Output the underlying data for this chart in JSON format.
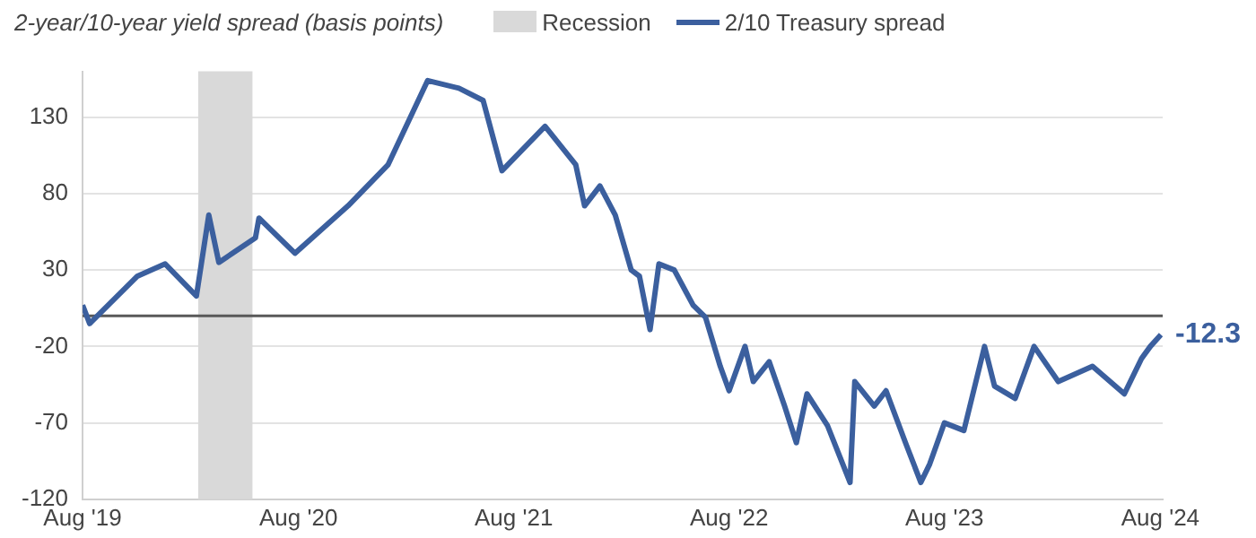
{
  "chart_data": {
    "type": "line",
    "title": "2-year/10-year yield spread (basis points)",
    "x": [
      "2019-08-01",
      "2019-08-13",
      "2019-11-02",
      "2019-12-19",
      "2020-02-10",
      "2020-03-02",
      "2020-03-19",
      "2020-05-20",
      "2020-05-26",
      "2020-07-26",
      "2020-10-24",
      "2020-12-31",
      "2021-03-08",
      "2021-04-30",
      "2021-06-10",
      "2021-07-12",
      "2021-09-23",
      "2021-11-14",
      "2021-11-29",
      "2021-12-25",
      "2022-01-20",
      "2022-02-16",
      "2022-03-02",
      "2022-03-20",
      "2022-04-04",
      "2022-04-30",
      "2022-06-01",
      "2022-06-22",
      "2022-07-17",
      "2022-08-01",
      "2022-08-28",
      "2022-09-11",
      "2022-10-08",
      "2022-11-03",
      "2022-11-23",
      "2022-12-11",
      "2023-01-15",
      "2023-02-22",
      "2023-03-02",
      "2023-04-04",
      "2023-04-24",
      "2023-05-27",
      "2023-06-22",
      "2023-07-07",
      "2023-08-01",
      "2023-09-03",
      "2023-10-08",
      "2023-10-25",
      "2023-11-29",
      "2023-12-31",
      "2024-02-10",
      "2024-04-08",
      "2024-06-01",
      "2024-06-30",
      "2024-07-15",
      "2024-08-02"
    ],
    "series": [
      {
        "name": "2/10 Treasury spread",
        "color": "#3b5f9e",
        "values": [
          7,
          -5,
          26,
          34,
          13,
          66,
          35,
          51,
          64,
          41,
          72,
          99,
          154,
          149,
          141,
          95,
          124,
          99,
          72,
          85,
          66,
          30,
          26,
          -9,
          34,
          30,
          7,
          -1,
          -33,
          -49,
          -20,
          -43,
          -30,
          -59,
          -83,
          -51,
          -72,
          -109,
          -43,
          -59,
          -49,
          -83,
          -109,
          -97,
          -70,
          -75,
          -20,
          -46,
          -54,
          -20,
          -43,
          -33,
          -51,
          -28,
          -20,
          -12.3
        ]
      }
    ],
    "xlim": [
      "2019-08-01",
      "2024-08-05"
    ],
    "xticks": [
      {
        "value": "2019-08-01",
        "label": "Aug '19"
      },
      {
        "value": "2020-08-01",
        "label": "Aug '20"
      },
      {
        "value": "2021-08-01",
        "label": "Aug '21"
      },
      {
        "value": "2022-08-01",
        "label": "Aug '22"
      },
      {
        "value": "2023-08-01",
        "label": "Aug '23"
      },
      {
        "value": "2024-08-01",
        "label": "Aug '24"
      }
    ],
    "ylim": [
      -120,
      160
    ],
    "yticks": [
      -120,
      -70,
      -20,
      30,
      80,
      130
    ],
    "bands": [
      {
        "axis": "x",
        "from": "2020-02-13",
        "to": "2020-05-15",
        "label": "Recession",
        "color": "#d9d9d9"
      }
    ],
    "ref_lines": [
      {
        "axis": "y",
        "value": 0,
        "color": "#595959"
      }
    ],
    "annotations": [
      {
        "text": "-12.3",
        "x": "2024-08-02",
        "y": -12.3
      }
    ],
    "grid": "y",
    "legend": "top",
    "marker": "none",
    "line_style": "solid"
  }
}
